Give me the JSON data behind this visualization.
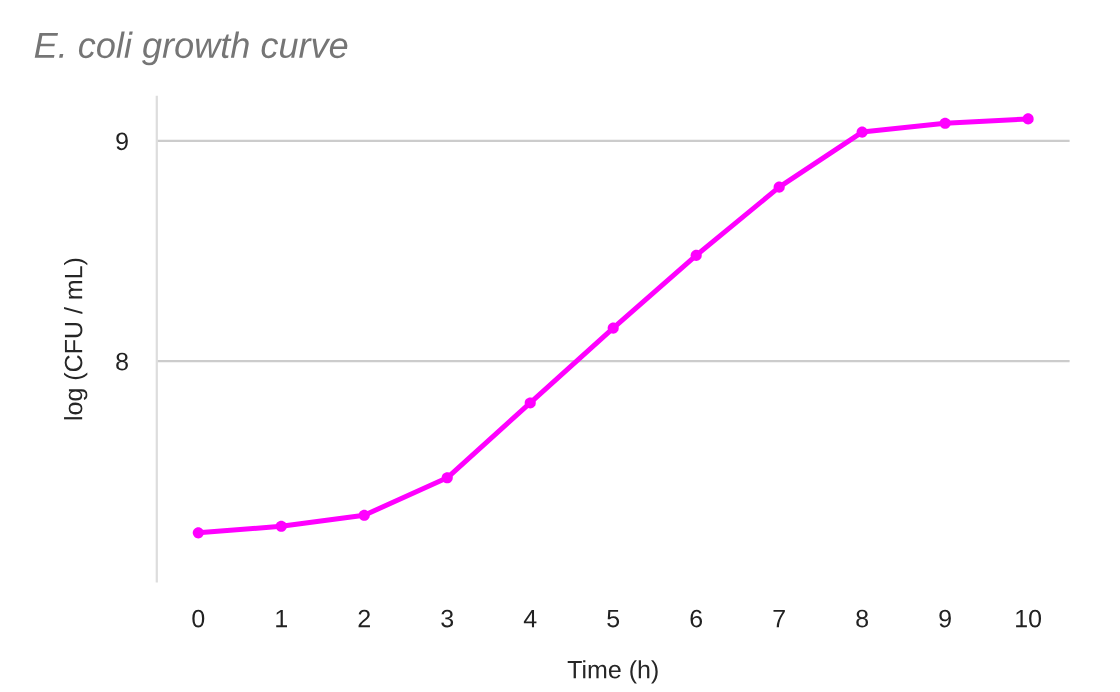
{
  "chart_data": {
    "type": "line",
    "title": "E. coli growth curve",
    "xlabel": "Time (h)",
    "ylabel": "log (CFU / mL)",
    "x": [
      0,
      1,
      2,
      3,
      4,
      5,
      6,
      7,
      8,
      9,
      10
    ],
    "series": [
      {
        "color": "#ff00ff",
        "values": [
          7.22,
          7.25,
          7.3,
          7.47,
          7.81,
          8.15,
          8.48,
          8.79,
          9.04,
          9.08,
          9.1
        ]
      }
    ],
    "xlim": [
      -0.5,
      10.5
    ],
    "xticks": [
      0,
      1,
      2,
      3,
      4,
      5,
      6,
      7,
      8,
      9,
      10
    ],
    "ylim": [
      7,
      9.2
    ],
    "yticks": [
      8,
      9
    ],
    "grid": "y",
    "marker": "circle",
    "line_style": "solid"
  }
}
